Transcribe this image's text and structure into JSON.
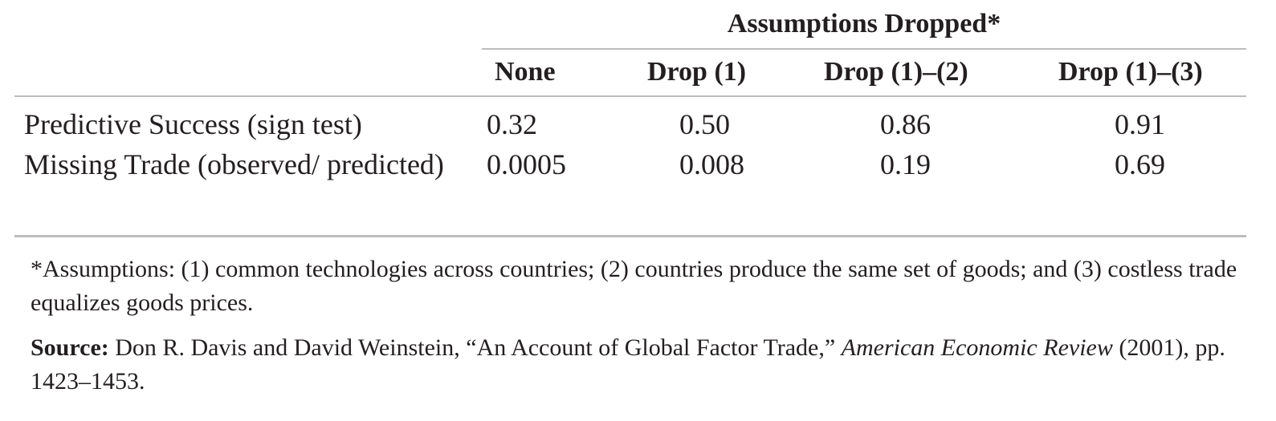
{
  "table": {
    "group_header": "Assumptions Dropped*",
    "columns": [
      "None",
      "Drop (1)",
      "Drop (1)–(2)",
      "Drop (1)–(3)"
    ],
    "rows": [
      {
        "label": "Predictive Success (sign test)",
        "values": [
          "0.32",
          "0.50",
          "0.86",
          "0.91"
        ]
      },
      {
        "label": "Missing Trade (observed/ predicted)",
        "values": [
          "0.0005",
          "0.008",
          "0.19",
          "0.69"
        ]
      }
    ]
  },
  "footnote": "*Assumptions: (1) common technologies across countries; (2) countries produce the same set of goods; and (3) costless trade equalizes goods prices.",
  "source": {
    "label": "Source:",
    "text_before": " Don R. Davis and David Weinstein, “An Account of Global Factor Trade,” ",
    "journal": "American Economic Review",
    "text_after": " (2001), pp. 1423–1453."
  }
}
